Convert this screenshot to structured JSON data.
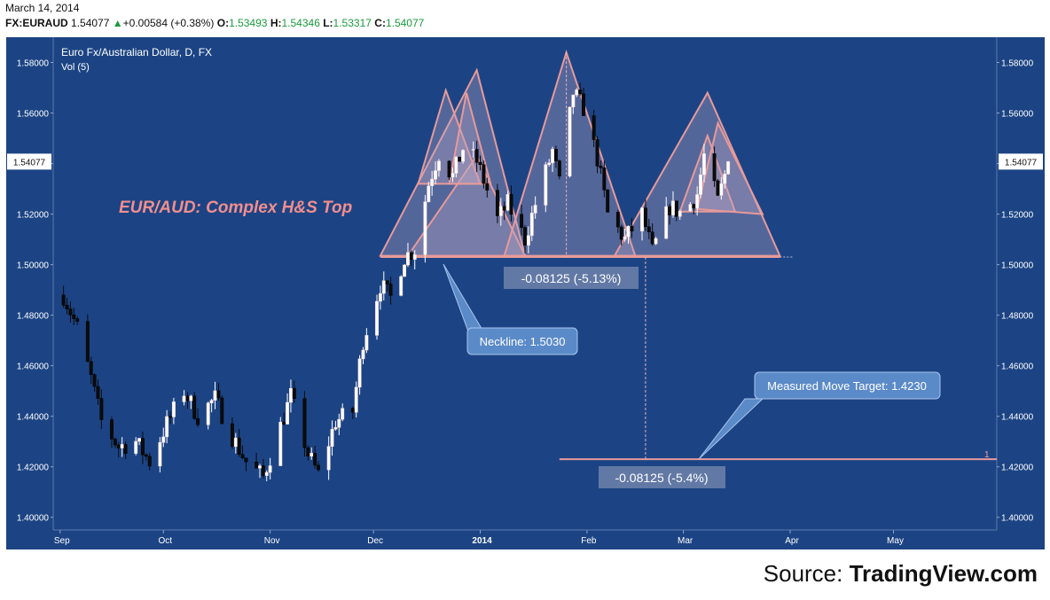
{
  "header": {
    "date": "March 14, 2014",
    "symbol": "FX:EURAUD",
    "last": "1.54077",
    "change": "+0.00584 (+0.38%)",
    "open_label": "O:",
    "open": "1.53493",
    "high_label": "H:",
    "high": "1.54346",
    "low_label": "L:",
    "low": "1.53317",
    "close_label": "C:",
    "close": "1.54077",
    "up_color": "#1a9a3c"
  },
  "chart_data": {
    "type": "candlestick",
    "title": "Euro Fx/Australian Dollar, D, FX",
    "indicator": "Vol (5)",
    "annotation_title": "EUR/AUD: Complex H&S Top",
    "x_ticks": [
      "Sep",
      "Oct",
      "Nov",
      "Dec",
      "2014",
      "Feb",
      "Mar",
      "Apr",
      "May"
    ],
    "y_ticks": [
      "1.58000",
      "1.56000",
      "1.54000",
      "1.52000",
      "1.50000",
      "1.48000",
      "1.46000",
      "1.44000",
      "1.42000",
      "1.40000"
    ],
    "ylim": [
      1.395,
      1.59
    ],
    "xlim": [
      "2013-08-30",
      "2014-05-31"
    ],
    "last_price_label": "1.54077",
    "neckline_label": "Neckline: 1.5030",
    "neckline_value": 1.503,
    "target_label": "Measured Move Target: 1.4230",
    "target_value": 1.423,
    "pattern_height_label": "-0.08125 (-5.13%)",
    "target_move_label": "-0.08125 (-5.4%)",
    "target_line_tag": "1",
    "colors": {
      "background": "#1c4484",
      "candle_up": "#ffffff",
      "candle_down": "#0b0b0b",
      "pattern_stroke": "#e89a9a",
      "pattern_fill": "#b9a6c4",
      "title_color": "#f28e8e",
      "callout_fill": "#5b8ac8"
    },
    "price_path": [
      [
        "2013-09-02",
        1.488
      ],
      [
        "2013-09-06",
        1.475
      ],
      [
        "2013-09-10",
        1.455
      ],
      [
        "2013-09-13",
        1.438
      ],
      [
        "2013-09-18",
        1.428
      ],
      [
        "2013-09-23",
        1.43
      ],
      [
        "2013-09-27",
        1.422
      ],
      [
        "2013-10-02",
        1.437
      ],
      [
        "2013-10-07",
        1.45
      ],
      [
        "2013-10-11",
        1.44
      ],
      [
        "2013-10-16",
        1.447
      ],
      [
        "2013-10-21",
        1.432
      ],
      [
        "2013-10-25",
        1.422
      ],
      [
        "2013-10-30",
        1.416
      ],
      [
        "2013-11-04",
        1.436
      ],
      [
        "2013-11-07",
        1.448
      ],
      [
        "2013-11-12",
        1.425
      ],
      [
        "2013-11-15",
        1.417
      ],
      [
        "2013-11-20",
        1.438
      ],
      [
        "2013-11-25",
        1.442
      ],
      [
        "2013-11-28",
        1.47
      ],
      [
        "2013-12-03",
        1.492
      ],
      [
        "2013-12-06",
        1.487
      ],
      [
        "2013-12-10",
        1.503
      ],
      [
        "2013-12-13",
        1.506
      ],
      [
        "2013-12-17",
        1.532
      ],
      [
        "2013-12-20",
        1.544
      ],
      [
        "2013-12-24",
        1.535
      ],
      [
        "2013-12-27",
        1.546
      ],
      [
        "2013-12-31",
        1.541
      ],
      [
        "2014-01-06",
        1.518
      ],
      [
        "2014-01-09",
        1.524
      ],
      [
        "2014-01-14",
        1.51
      ],
      [
        "2014-01-17",
        1.524
      ],
      [
        "2014-01-22",
        1.545
      ],
      [
        "2014-01-24",
        1.532
      ],
      [
        "2014-01-28",
        1.568
      ],
      [
        "2014-01-31",
        1.562
      ],
      [
        "2014-02-04",
        1.542
      ],
      [
        "2014-02-07",
        1.52
      ],
      [
        "2014-02-12",
        1.51
      ],
      [
        "2014-02-17",
        1.52
      ],
      [
        "2014-02-20",
        1.505
      ],
      [
        "2014-02-25",
        1.523
      ],
      [
        "2014-03-01",
        1.52
      ],
      [
        "2014-03-05",
        1.528
      ],
      [
        "2014-03-07",
        1.543
      ],
      [
        "2014-03-11",
        1.525
      ],
      [
        "2014-03-14",
        1.54077
      ]
    ],
    "pattern_triangles": [
      [
        [
          "2013-12-03",
          1.5035
        ],
        [
          "2013-12-31",
          1.577
        ],
        [
          "2014-01-14",
          1.5035
        ]
      ],
      [
        [
          "2013-12-11",
          1.5035
        ],
        [
          "2013-12-31",
          1.543
        ],
        [
          "2014-01-14",
          1.5035
        ]
      ],
      [
        [
          "2013-12-14",
          1.532
        ],
        [
          "2013-12-22",
          1.569
        ],
        [
          "2014-01-01",
          1.532
        ]
      ],
      [
        [
          "2013-12-23",
          1.532
        ],
        [
          "2013-12-28",
          1.568
        ],
        [
          "2014-01-04",
          1.532
        ]
      ],
      [
        [
          "2014-01-08",
          1.5035
        ],
        [
          "2014-01-26",
          1.584
        ],
        [
          "2014-02-15",
          1.5035
        ]
      ],
      [
        [
          "2014-02-09",
          1.5035
        ],
        [
          "2014-03-08",
          1.568
        ],
        [
          "2014-03-29",
          1.5035
        ]
      ],
      [
        [
          "2014-02-28",
          1.521
        ],
        [
          "2014-03-08",
          1.551
        ],
        [
          "2014-03-16",
          1.521
        ]
      ],
      [
        [
          "2014-03-05",
          1.522
        ],
        [
          "2014-03-11",
          1.556
        ],
        [
          "2014-03-24",
          1.52
        ]
      ]
    ]
  },
  "source": {
    "prefix": "Source: ",
    "brand": "TradingView.com"
  }
}
